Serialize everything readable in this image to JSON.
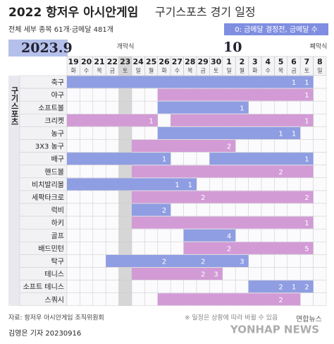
{
  "header": {
    "title": "2022 항저우 아시안게임",
    "subtitle_title": "구기스포츠 경기 일정",
    "summary": "전체 세부 종목 61개·금메달 481개",
    "legend": "0: 금메달 결정전, 금메달 수"
  },
  "calendar": {
    "month_sep": "2023.9",
    "month_oct": "10",
    "opening": "개막식",
    "closing": "폐막식",
    "dates": [
      19,
      20,
      21,
      22,
      23,
      24,
      25,
      26,
      27,
      28,
      29,
      30,
      1,
      2,
      3,
      4,
      5,
      6,
      7,
      8
    ],
    "weekdays": [
      "화",
      "수",
      "목",
      "금",
      "토",
      "일",
      "월",
      "화",
      "수",
      "목",
      "금",
      "토",
      "일",
      "월",
      "화",
      "수",
      "목",
      "금",
      "토",
      "일"
    ],
    "opening_column_color": "#d6d6d6"
  },
  "group_label": "구기스포츠",
  "rows": [
    {
      "name": "축구",
      "color": "#8f9de2",
      "span": [
        [
          0,
          18
        ]
      ],
      "golds": [
        [
          17,
          1
        ],
        [
          18,
          1
        ]
      ]
    },
    {
      "name": "야구",
      "color": "#d29bd6",
      "span": [
        [
          7,
          18
        ]
      ],
      "golds": [
        [
          18,
          1
        ]
      ]
    },
    {
      "name": "소프트볼",
      "color": "#8f9de2",
      "span": [
        [
          7,
          13
        ]
      ],
      "golds": [
        [
          13,
          1
        ]
      ]
    },
    {
      "name": "크리켓",
      "color": "#d29bd6",
      "span": [
        [
          0,
          6
        ],
        [
          8,
          18
        ]
      ],
      "golds": [
        [
          6,
          1
        ],
        [
          18,
          1
        ]
      ]
    },
    {
      "name": "농구",
      "color": "#8f9de2",
      "span": [
        [
          7,
          17
        ]
      ],
      "golds": [
        [
          16,
          1
        ],
        [
          17,
          1
        ]
      ]
    },
    {
      "name": "3X3 농구",
      "color": "#d29bd6",
      "span": [
        [
          5,
          12
        ]
      ],
      "golds": [
        [
          12,
          2
        ]
      ]
    },
    {
      "name": "배구",
      "color": "#8f9de2",
      "span": [
        [
          0,
          7
        ],
        [
          11,
          18
        ]
      ],
      "golds": [
        [
          7,
          1
        ],
        [
          18,
          1
        ]
      ]
    },
    {
      "name": "핸드볼",
      "color": "#d29bd6",
      "span": [
        [
          5,
          18
        ]
      ],
      "golds": [
        [
          16,
          2
        ]
      ]
    },
    {
      "name": "비치발리볼",
      "color": "#8f9de2",
      "span": [
        [
          0,
          9
        ]
      ],
      "golds": [
        [
          8,
          1
        ],
        [
          9,
          1
        ]
      ]
    },
    {
      "name": "세팍타크로",
      "color": "#d29bd6",
      "span": [
        [
          5,
          18
        ]
      ],
      "golds": [
        [
          10,
          2
        ],
        [
          18,
          2
        ]
      ]
    },
    {
      "name": "럭비",
      "color": "#8f9de2",
      "span": [
        [
          5,
          7
        ]
      ],
      "golds": [
        [
          7,
          2
        ]
      ]
    },
    {
      "name": "하키",
      "color": "#d29bd6",
      "span": [
        [
          5,
          18
        ]
      ],
      "golds": [
        [
          18,
          1
        ]
      ]
    },
    {
      "name": "골프",
      "color": "#8f9de2",
      "span": [
        [
          9,
          12
        ]
      ],
      "golds": [
        [
          12,
          4
        ]
      ]
    },
    {
      "name": "배드민턴",
      "color": "#d29bd6",
      "span": [
        [
          9,
          18
        ]
      ],
      "golds": [
        [
          12,
          2
        ],
        [
          18,
          5
        ]
      ]
    },
    {
      "name": "탁구",
      "color": "#8f9de2",
      "span": [
        [
          3,
          13
        ]
      ],
      "golds": [
        [
          7,
          2
        ],
        [
          10,
          2
        ],
        [
          13,
          3
        ]
      ]
    },
    {
      "name": "테니스",
      "color": "#d29bd6",
      "span": [
        [
          5,
          11
        ]
      ],
      "golds": [
        [
          10,
          2
        ],
        [
          11,
          3
        ]
      ]
    },
    {
      "name": "소프트 테니스",
      "color": "#8f9de2",
      "span": [
        [
          14,
          18
        ]
      ],
      "golds": [
        [
          16,
          2
        ],
        [
          17,
          1
        ],
        [
          18,
          2
        ]
      ]
    },
    {
      "name": "스쿼시",
      "color": "#d29bd6",
      "span": [
        [
          7,
          17
        ]
      ],
      "golds": [
        [
          16,
          2
        ]
      ]
    }
  ],
  "footer": {
    "source": "자료: 항저우 아시안게임 조직위원회",
    "note": "※ 일정은 상황에 따라 바뀔 수 있음",
    "byline": "김영은 기자  20230916",
    "brand": "연합뉴스",
    "brand_en": "YONHAP NEWS"
  }
}
